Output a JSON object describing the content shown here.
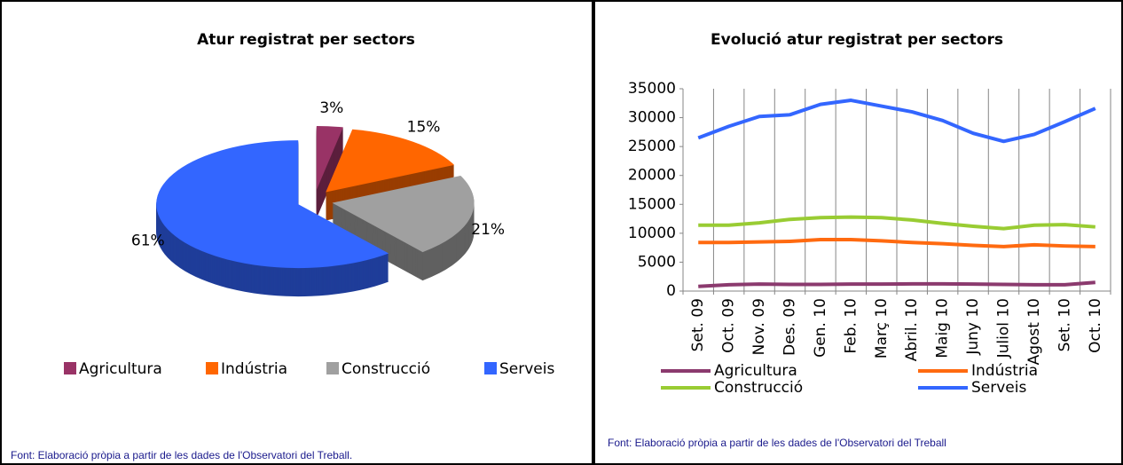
{
  "chart_data": [
    {
      "type": "pie",
      "title": "Atur registrat per sectors",
      "categories": [
        "Agricultura",
        "Indústria",
        "Construcció",
        "Serveis"
      ],
      "values": [
        3,
        15,
        21,
        61
      ],
      "value_labels": [
        "3%",
        "15%",
        "21%",
        "61%"
      ],
      "colors": [
        "#993366",
        "#ff6600",
        "#a0a0a0",
        "#3366ff"
      ],
      "footnote": "Font: Elaboració pròpia a partir de les dades de l'Observatori del Treball."
    },
    {
      "type": "line",
      "title": "Evolució atur registrat per sectors",
      "categories": [
        "Set. 09",
        "Oct. 09",
        "Nov. 09",
        "Des. 09",
        "Gen. 10",
        "Feb. 10",
        "Març 10",
        "Abril. 10",
        "Maig 10",
        "Juny 10",
        "Juliol 10",
        "Agost 10",
        "Set. 10",
        "Oct. 10"
      ],
      "series": [
        {
          "name": "Agricultura",
          "color": "#8b3a6e",
          "values": [
            800,
            1100,
            1200,
            1150,
            1150,
            1200,
            1200,
            1250,
            1250,
            1200,
            1150,
            1100,
            1100,
            1500
          ]
        },
        {
          "name": "Indústria",
          "color": "#ff6a10",
          "values": [
            8400,
            8400,
            8500,
            8600,
            8900,
            8900,
            8700,
            8400,
            8200,
            7900,
            7700,
            8000,
            7800,
            7700
          ]
        },
        {
          "name": "Construcció",
          "color": "#99cc33",
          "values": [
            11400,
            11400,
            11800,
            12400,
            12700,
            12800,
            12700,
            12300,
            11700,
            11200,
            10800,
            11400,
            11500,
            11100
          ]
        },
        {
          "name": "Serveis",
          "color": "#3366ff",
          "values": [
            26500,
            28500,
            30200,
            30500,
            32300,
            33000,
            32000,
            31000,
            29500,
            27300,
            25900,
            27100,
            29300,
            31600
          ]
        }
      ],
      "ylim": [
        0,
        35000
      ],
      "yticks": [
        0,
        5000,
        10000,
        15000,
        20000,
        25000,
        30000,
        35000
      ],
      "grid": false,
      "footnote": "Font: Elaboració pròpia a partir de les dades de l'Observatori del Treball"
    }
  ]
}
